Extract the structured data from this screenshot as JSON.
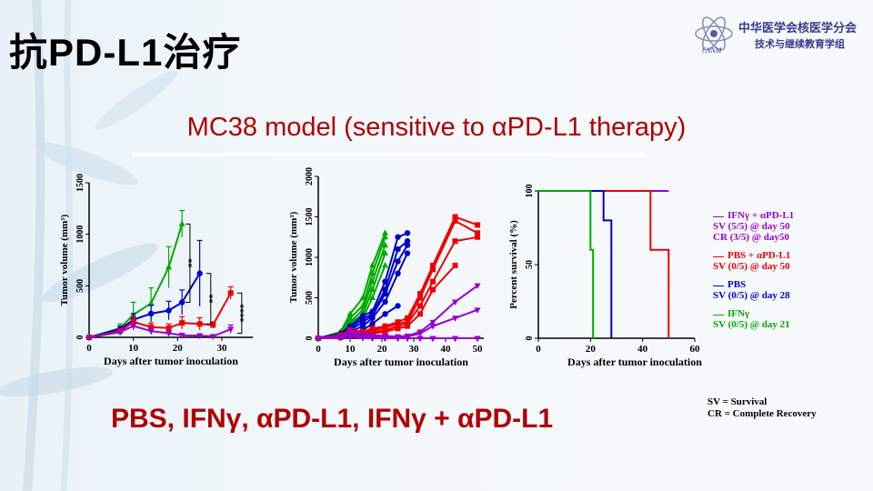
{
  "slide_title": "抗PD-L1治疗",
  "subtitle": "MC38 model (sensitive to αPD-L1 therapy)",
  "treatments_line": "PBS, IFNγ, αPD-L1, IFNγ + αPD-L1",
  "logo": {
    "line1": "中华医学会核医学分会",
    "line2": "技术与继续教育学组",
    "mark": "CSNM"
  },
  "colors": {
    "pbs": "#0000cc",
    "ifng": "#00aa00",
    "pdl1": "#ee0000",
    "combo": "#9900cc"
  },
  "legend": [
    {
      "label": "IFNγ + αPD-L1",
      "color": "#9900cc",
      "detail": [
        "SV (5/5) @ day 50",
        "CR (3/5) @ day50"
      ]
    },
    {
      "label": "PBS + αPD-L1",
      "color": "#ee0000",
      "detail": [
        "SV (0/5) @ day 50"
      ]
    },
    {
      "label": "PBS",
      "color": "#0000cc",
      "detail": [
        "SV (0/5) @ day 28"
      ]
    },
    {
      "label": "IFNγ",
      "color": "#00aa00",
      "detail": [
        "SV (0/5) @ day 21"
      ]
    }
  ],
  "footnotes": [
    "SV = Survival",
    "CR = Complete Recovery"
  ],
  "chart_data": [
    {
      "type": "line",
      "xlabel": "Days after tumor inoculation",
      "ylabel": "Tumor volume (mm³)",
      "xlim": [
        0,
        37
      ],
      "ylim": [
        0,
        1500
      ],
      "xticks": [
        0,
        10,
        20,
        30
      ],
      "yticks": [
        0,
        500,
        1000,
        1500
      ],
      "significance": [
        "**",
        "**",
        "****"
      ],
      "series": [
        {
          "key": "ifng",
          "x": [
            0,
            7,
            10,
            14,
            18,
            21
          ],
          "y": [
            0,
            90,
            220,
            330,
            680,
            1100
          ],
          "err": [
            0,
            40,
            120,
            150,
            200,
            130
          ]
        },
        {
          "key": "pbs",
          "x": [
            0,
            7,
            10,
            14,
            18,
            21,
            25
          ],
          "y": [
            0,
            80,
            170,
            230,
            260,
            340,
            620
          ],
          "err": [
            0,
            30,
            60,
            80,
            90,
            120,
            320
          ]
        },
        {
          "key": "pdl1",
          "x": [
            0,
            7,
            10,
            14,
            18,
            21,
            25,
            28,
            32
          ],
          "y": [
            0,
            60,
            150,
            100,
            90,
            140,
            130,
            120,
            430
          ],
          "err": [
            0,
            20,
            50,
            40,
            40,
            60,
            60,
            30,
            60
          ]
        },
        {
          "key": "combo",
          "x": [
            0,
            7,
            10,
            14,
            18,
            21,
            25,
            28,
            32
          ],
          "y": [
            0,
            50,
            110,
            60,
            40,
            20,
            15,
            10,
            80
          ],
          "err": [
            0,
            20,
            40,
            30,
            20,
            20,
            20,
            10,
            40
          ]
        }
      ]
    },
    {
      "type": "line",
      "xlabel": "Days after tumor inoculation",
      "ylabel": "Tumor volume (mm³)",
      "xlim": [
        0,
        52
      ],
      "ylim": [
        0,
        2000
      ],
      "xticks": [
        0,
        10,
        20,
        30,
        40,
        50
      ],
      "yticks": [
        0,
        500,
        1000,
        1500,
        2000
      ],
      "series": [
        {
          "key": "ifng",
          "x": [
            0,
            7,
            10,
            14,
            17,
            21
          ],
          "y": [
            0,
            80,
            300,
            500,
            900,
            1300
          ]
        },
        {
          "key": "ifng",
          "x": [
            0,
            7,
            10,
            14,
            17,
            21
          ],
          "y": [
            0,
            60,
            250,
            400,
            800,
            1250
          ]
        },
        {
          "key": "ifng",
          "x": [
            0,
            7,
            10,
            14,
            17,
            21
          ],
          "y": [
            0,
            70,
            200,
            350,
            700,
            1150
          ]
        },
        {
          "key": "ifng",
          "x": [
            0,
            7,
            10,
            14,
            17,
            21
          ],
          "y": [
            0,
            50,
            180,
            300,
            600,
            1050
          ]
        },
        {
          "key": "ifng",
          "x": [
            0,
            7,
            10,
            14,
            17,
            21
          ],
          "y": [
            0,
            40,
            150,
            250,
            500,
            900
          ]
        },
        {
          "key": "pbs",
          "x": [
            0,
            7,
            10,
            14,
            17,
            21,
            25,
            28
          ],
          "y": [
            0,
            60,
            150,
            280,
            330,
            700,
            1250,
            1300
          ]
        },
        {
          "key": "pbs",
          "x": [
            0,
            7,
            10,
            14,
            17,
            21,
            25,
            28
          ],
          "y": [
            0,
            50,
            120,
            240,
            300,
            600,
            1100,
            1200
          ]
        },
        {
          "key": "pbs",
          "x": [
            0,
            7,
            10,
            14,
            17,
            21,
            25,
            28
          ],
          "y": [
            0,
            40,
            100,
            200,
            280,
            550,
            950,
            1150
          ]
        },
        {
          "key": "pbs",
          "x": [
            0,
            7,
            10,
            14,
            17,
            21,
            25,
            28
          ],
          "y": [
            0,
            30,
            80,
            150,
            250,
            450,
            800,
            1050
          ]
        },
        {
          "key": "pbs",
          "x": [
            0,
            7,
            10,
            14,
            17,
            21,
            25
          ],
          "y": [
            0,
            20,
            60,
            100,
            180,
            300,
            400
          ]
        },
        {
          "key": "pdl1",
          "x": [
            0,
            7,
            10,
            14,
            17,
            21,
            25,
            28,
            32,
            36,
            43,
            50
          ],
          "y": [
            0,
            40,
            100,
            80,
            120,
            150,
            200,
            250,
            550,
            900,
            1500,
            1400
          ]
        },
        {
          "key": "pdl1",
          "x": [
            0,
            7,
            10,
            14,
            17,
            21,
            25,
            28,
            32,
            36,
            43,
            50
          ],
          "y": [
            0,
            30,
            80,
            60,
            100,
            130,
            180,
            200,
            500,
            850,
            1450,
            1300
          ]
        },
        {
          "key": "pdl1",
          "x": [
            0,
            7,
            10,
            14,
            17,
            21,
            25,
            28,
            32,
            36,
            43,
            50
          ],
          "y": [
            0,
            20,
            60,
            40,
            80,
            100,
            150,
            180,
            400,
            700,
            1200,
            1250
          ]
        },
        {
          "key": "pdl1",
          "x": [
            0,
            7,
            10,
            14,
            17,
            21,
            25,
            28,
            32,
            36,
            43
          ],
          "y": [
            0,
            10,
            40,
            30,
            60,
            80,
            120,
            150,
            300,
            600,
            900
          ]
        },
        {
          "key": "combo",
          "x": [
            0,
            7,
            10,
            14,
            17,
            21,
            25,
            28,
            32,
            36,
            43,
            50
          ],
          "y": [
            0,
            30,
            80,
            50,
            40,
            30,
            20,
            30,
            80,
            200,
            450,
            650
          ]
        },
        {
          "key": "combo",
          "x": [
            0,
            7,
            10,
            14,
            17,
            21,
            25,
            28,
            32,
            36,
            43,
            50
          ],
          "y": [
            0,
            20,
            60,
            40,
            30,
            20,
            20,
            20,
            60,
            150,
            250,
            350
          ]
        },
        {
          "key": "combo",
          "x": [
            0,
            7,
            10,
            14,
            17,
            21,
            25,
            28,
            32,
            36,
            43,
            50
          ],
          "y": [
            0,
            10,
            40,
            20,
            10,
            0,
            0,
            0,
            0,
            0,
            0,
            0
          ]
        },
        {
          "key": "combo",
          "x": [
            0,
            7,
            10,
            14,
            17,
            21,
            25,
            28,
            32,
            36,
            43,
            50
          ],
          "y": [
            0,
            10,
            30,
            10,
            0,
            0,
            0,
            0,
            0,
            0,
            0,
            0
          ]
        },
        {
          "key": "combo",
          "x": [
            0,
            7,
            10,
            14,
            17,
            21,
            25,
            28,
            32,
            36,
            43,
            50
          ],
          "y": [
            0,
            5,
            20,
            5,
            0,
            0,
            0,
            0,
            0,
            0,
            0,
            0
          ]
        }
      ]
    },
    {
      "type": "line",
      "xlabel": "Days after tumor inoculation",
      "ylabel": "Percent survival (%)",
      "xlim": [
        0,
        60
      ],
      "ylim": [
        0,
        100
      ],
      "xticks": [
        0,
        20,
        40,
        60
      ],
      "yticks": [
        0,
        50,
        100
      ],
      "series": [
        {
          "key": "combo",
          "x": [
            0,
            50
          ],
          "y": [
            100,
            100
          ]
        },
        {
          "key": "pdl1",
          "x": [
            0,
            43,
            43,
            50,
            50
          ],
          "y": [
            100,
            100,
            60,
            60,
            0
          ]
        },
        {
          "key": "pbs",
          "x": [
            0,
            25,
            25,
            28,
            28
          ],
          "y": [
            100,
            100,
            80,
            80,
            0
          ]
        },
        {
          "key": "ifng",
          "x": [
            0,
            20,
            20,
            21,
            21
          ],
          "y": [
            100,
            100,
            60,
            60,
            0
          ]
        }
      ]
    }
  ]
}
